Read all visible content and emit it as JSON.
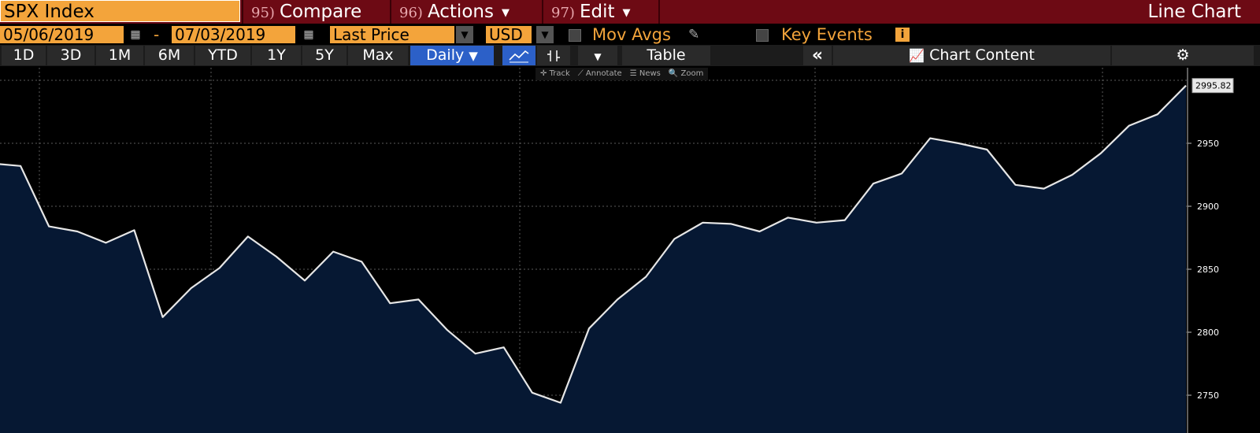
{
  "header": {
    "ticker": "SPX Index",
    "compare": {
      "num": "95)",
      "label": "Compare"
    },
    "actions": {
      "num": "96)",
      "label": "Actions"
    },
    "edit": {
      "num": "97)",
      "label": "Edit"
    },
    "view_title": "Line Chart"
  },
  "options": {
    "start_date": "05/06/2019",
    "end_date": "07/03/2019",
    "separator": "-",
    "field": "Last Price",
    "currency": "USD",
    "mov_avgs": "Mov Avgs",
    "key_events": "Key Events"
  },
  "toolbar": {
    "ranges": [
      "1D",
      "3D",
      "1M",
      "6M",
      "YTD",
      "1Y",
      "5Y",
      "Max"
    ],
    "frequency": "Daily",
    "table": "Table",
    "chart_content": "Chart Content"
  },
  "mini_toolbar": [
    "Track",
    "Annotate",
    "News",
    "Zoom"
  ],
  "colors": {
    "header_bg": "#6d0a14",
    "accent_orange": "#f3a43b",
    "active_blue": "#2c60c8",
    "line": "#e6e6e6",
    "area_fill": "#061833"
  },
  "chart_data": {
    "type": "area",
    "title": "",
    "xlabel": "",
    "ylabel": "",
    "ylim": [
      2720,
      3010
    ],
    "yticks": [
      2750,
      2800,
      2850,
      2900,
      2950
    ],
    "last_value_label": "2995.82",
    "grid": true,
    "series": [
      {
        "values": [
          2934,
          2932,
          2884,
          2880,
          2871,
          2881,
          2812,
          2835,
          2851,
          2876,
          2860,
          2841,
          2864,
          2856,
          2823,
          2826,
          2802,
          2783,
          2788,
          2752,
          2744,
          2803,
          2826,
          2844,
          2874,
          2887,
          2886,
          2880,
          2891,
          2887,
          2889,
          2918,
          2926,
          2954,
          2950,
          2945,
          2917,
          2914,
          2925,
          2942,
          2964,
          2973,
          2995.82
        ]
      }
    ]
  }
}
